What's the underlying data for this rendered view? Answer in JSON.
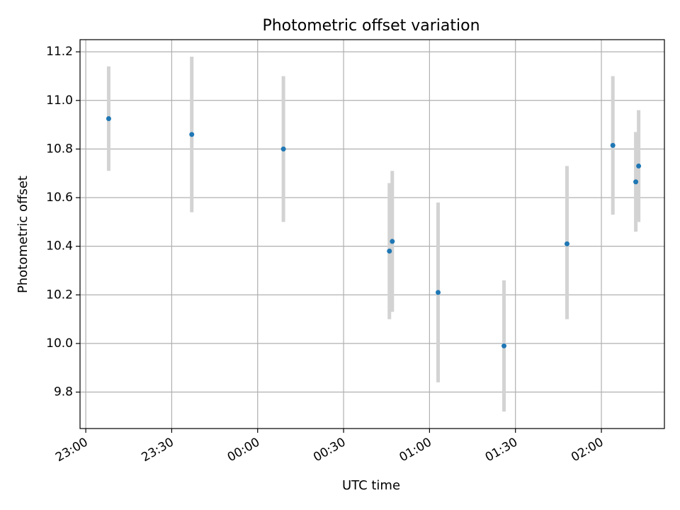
{
  "chart_data": {
    "type": "scatter",
    "title": "Photometric offset variation",
    "xlabel": "UTC time",
    "ylabel": "Photometric offset",
    "xlim": [
      "22:58",
      "02:22"
    ],
    "ylim": [
      9.65,
      11.25
    ],
    "grid": true,
    "x_ticks": [
      "23:00",
      "23:30",
      "00:00",
      "00:30",
      "01:00",
      "01:30",
      "02:00"
    ],
    "y_ticks": [
      "9.8",
      "10.0",
      "10.2",
      "10.4",
      "10.6",
      "10.8",
      "11.0",
      "11.2"
    ],
    "points": [
      {
        "x": "23:08",
        "y": 10.925,
        "low": 10.71,
        "high": 11.14
      },
      {
        "x": "23:37",
        "y": 10.86,
        "low": 10.54,
        "high": 11.18
      },
      {
        "x": "00:09",
        "y": 10.8,
        "low": 10.5,
        "high": 11.1
      },
      {
        "x": "00:46",
        "y": 10.38,
        "low": 10.1,
        "high": 10.66
      },
      {
        "x": "00:47",
        "y": 10.42,
        "low": 10.13,
        "high": 10.71
      },
      {
        "x": "01:03",
        "y": 10.21,
        "low": 9.84,
        "high": 10.58
      },
      {
        "x": "01:26",
        "y": 9.99,
        "low": 9.72,
        "high": 10.26
      },
      {
        "x": "01:48",
        "y": 10.41,
        "low": 10.1,
        "high": 10.73
      },
      {
        "x": "02:04",
        "y": 10.815,
        "low": 10.53,
        "high": 11.1
      },
      {
        "x": "02:12",
        "y": 10.665,
        "low": 10.46,
        "high": 10.87
      },
      {
        "x": "02:13",
        "y": 10.73,
        "low": 10.5,
        "high": 10.96
      }
    ],
    "colors": {
      "point": "#1f77b4",
      "errorbar": "#d3d3d3",
      "grid": "#b0b0b0"
    }
  }
}
